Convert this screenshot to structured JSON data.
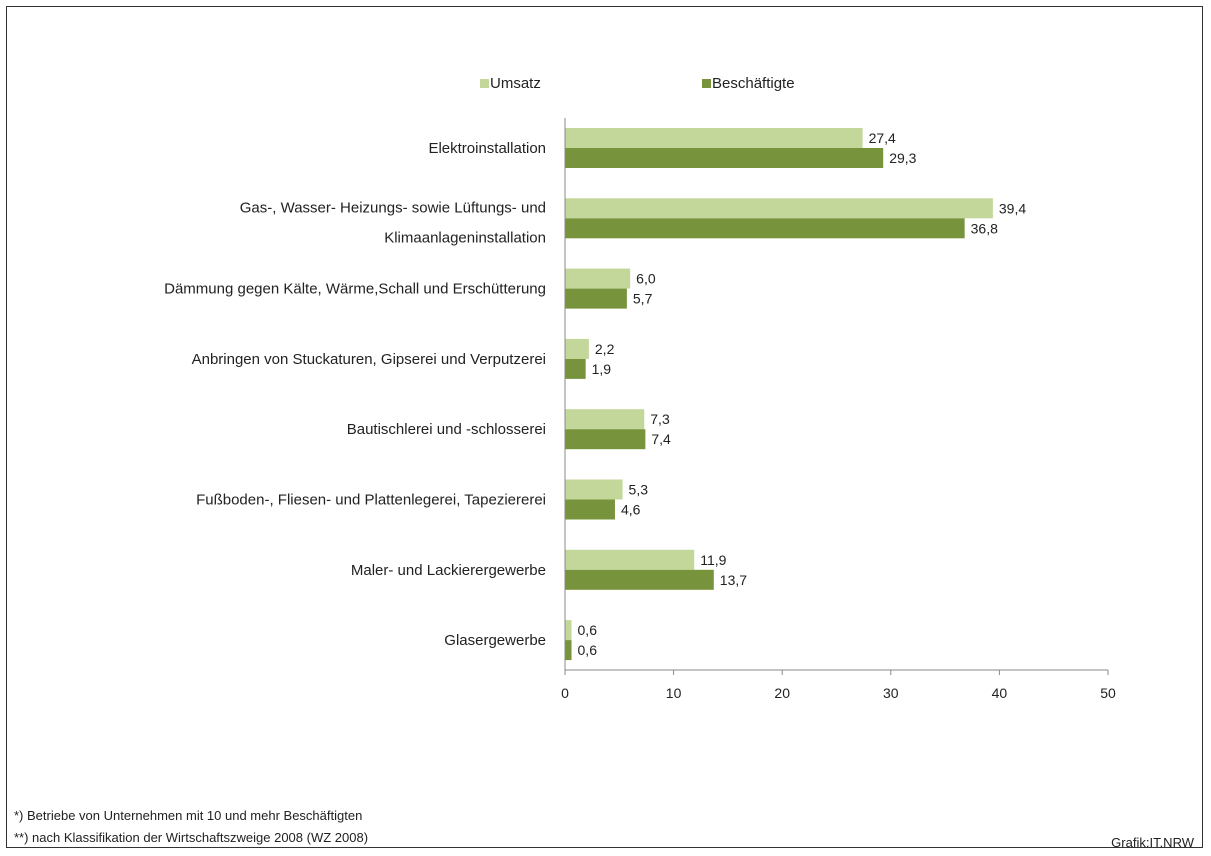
{
  "chart_data": {
    "type": "bar",
    "orientation": "horizontal",
    "categories": [
      [
        "Elektroinstallation"
      ],
      [
        "Gas-, Wasser- Heizungs- sowie Lüftungs- und",
        "Klimaanlageninstallation"
      ],
      [
        "Dämmung gegen Kälte, Wärme,Schall und Erschütterung"
      ],
      [
        "Anbringen von Stuckaturen, Gipserei und Verputzerei"
      ],
      [
        "Bautischlerei und -schlosserei"
      ],
      [
        "Fußboden-, Fliesen- und Plattenlegerei, Tapeziererei"
      ],
      [
        "Maler- und Lackierergewerbe"
      ],
      [
        "Glasergewerbe"
      ]
    ],
    "series": [
      {
        "name": "Umsatz",
        "color": "#c4d79b",
        "values": [
          27.4,
          39.4,
          6.0,
          2.2,
          7.3,
          5.3,
          11.9,
          0.6
        ],
        "labels": [
          "27,4",
          "39,4",
          "6,0",
          "2,2",
          "7,3",
          "5,3",
          "11,9",
          "0,6"
        ]
      },
      {
        "name": "Beschäftigte",
        "color": "#77933c",
        "values": [
          29.3,
          36.8,
          5.7,
          1.9,
          7.4,
          4.6,
          13.7,
          0.6
        ],
        "labels": [
          "29,3",
          "36,8",
          "5,7",
          "1,9",
          "7,4",
          "4,6",
          "13,7",
          "0,6"
        ]
      }
    ],
    "xlim": [
      0,
      50
    ],
    "xticks": [
      0,
      10,
      20,
      30,
      40,
      50
    ],
    "grid": false,
    "legend": "top"
  },
  "footnotes": [
    "*) Betriebe von Unternehmen mit 10 und mehr Beschäftigten",
    "**) nach Klassifikation der Wirtschaftszweige 2008 (WZ 2008)"
  ],
  "credit": "Grafik:IT.NRW"
}
